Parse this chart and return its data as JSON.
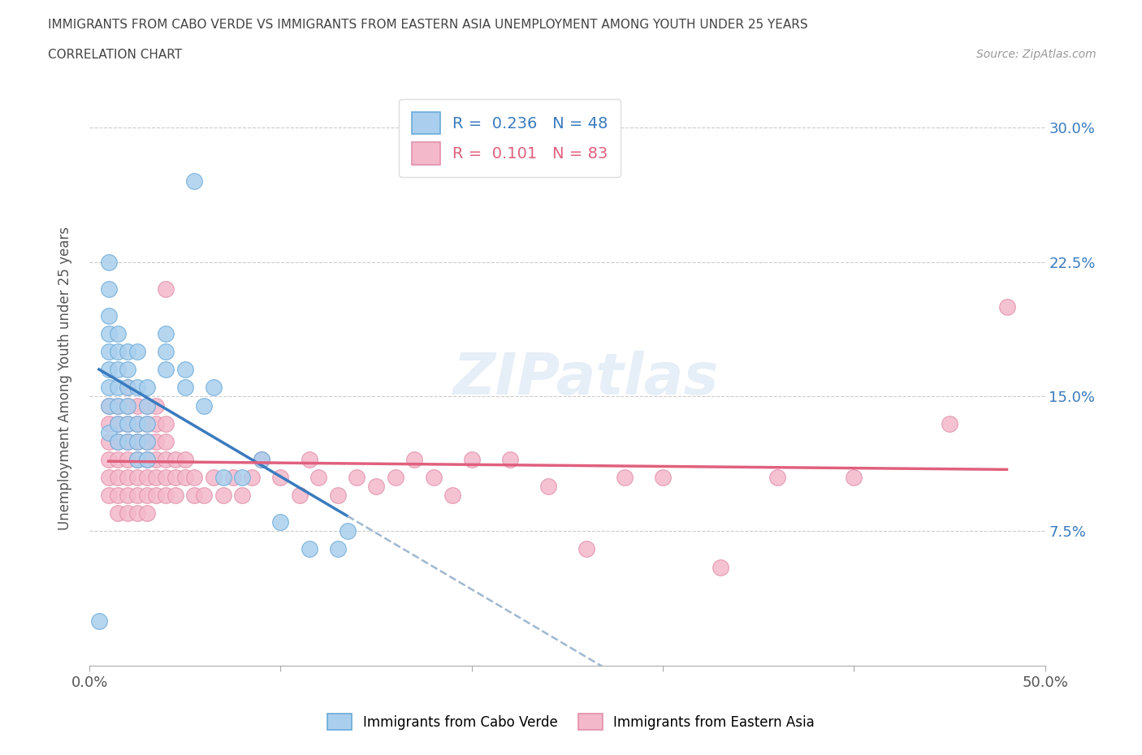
{
  "title_line1": "IMMIGRANTS FROM CABO VERDE VS IMMIGRANTS FROM EASTERN ASIA UNEMPLOYMENT AMONG YOUTH UNDER 25 YEARS",
  "title_line2": "CORRELATION CHART",
  "source": "Source: ZipAtlas.com",
  "ylabel": "Unemployment Among Youth under 25 years",
  "xlim": [
    0.0,
    0.5
  ],
  "ylim": [
    0.0,
    0.32
  ],
  "ytick_labels": [
    "7.5%",
    "15.0%",
    "22.5%",
    "30.0%"
  ],
  "ytick_values": [
    0.075,
    0.15,
    0.225,
    0.3
  ],
  "R_cabo": 0.236,
  "N_cabo": 48,
  "R_eastern": 0.101,
  "N_eastern": 83,
  "color_cabo": "#aacfee",
  "color_eastern": "#f4b8cb",
  "trendline_cabo_color": "#3a7bbf",
  "trendline_eastern_color": "#e0607e",
  "trendline_dashed_color": "#a0b8d0",
  "background_color": "#ffffff",
  "watermark": "ZIPatlas",
  "cabo_verde_points": [
    [
      0.005,
      0.025
    ],
    [
      0.01,
      0.13
    ],
    [
      0.01,
      0.145
    ],
    [
      0.01,
      0.155
    ],
    [
      0.01,
      0.165
    ],
    [
      0.01,
      0.175
    ],
    [
      0.01,
      0.185
    ],
    [
      0.01,
      0.195
    ],
    [
      0.01,
      0.21
    ],
    [
      0.01,
      0.225
    ],
    [
      0.015,
      0.125
    ],
    [
      0.015,
      0.135
    ],
    [
      0.015,
      0.145
    ],
    [
      0.015,
      0.155
    ],
    [
      0.015,
      0.165
    ],
    [
      0.015,
      0.175
    ],
    [
      0.015,
      0.185
    ],
    [
      0.02,
      0.125
    ],
    [
      0.02,
      0.135
    ],
    [
      0.02,
      0.145
    ],
    [
      0.02,
      0.155
    ],
    [
      0.02,
      0.165
    ],
    [
      0.02,
      0.175
    ],
    [
      0.025,
      0.115
    ],
    [
      0.025,
      0.125
    ],
    [
      0.025,
      0.135
    ],
    [
      0.025,
      0.155
    ],
    [
      0.025,
      0.175
    ],
    [
      0.03,
      0.115
    ],
    [
      0.03,
      0.125
    ],
    [
      0.03,
      0.135
    ],
    [
      0.03,
      0.145
    ],
    [
      0.03,
      0.155
    ],
    [
      0.04,
      0.165
    ],
    [
      0.04,
      0.175
    ],
    [
      0.04,
      0.185
    ],
    [
      0.05,
      0.155
    ],
    [
      0.05,
      0.165
    ],
    [
      0.055,
      0.27
    ],
    [
      0.06,
      0.145
    ],
    [
      0.065,
      0.155
    ],
    [
      0.07,
      0.105
    ],
    [
      0.08,
      0.105
    ],
    [
      0.09,
      0.115
    ],
    [
      0.1,
      0.08
    ],
    [
      0.115,
      0.065
    ],
    [
      0.13,
      0.065
    ],
    [
      0.135,
      0.075
    ]
  ],
  "eastern_asia_points": [
    [
      0.01,
      0.095
    ],
    [
      0.01,
      0.105
    ],
    [
      0.01,
      0.115
    ],
    [
      0.01,
      0.125
    ],
    [
      0.01,
      0.135
    ],
    [
      0.01,
      0.145
    ],
    [
      0.015,
      0.085
    ],
    [
      0.015,
      0.095
    ],
    [
      0.015,
      0.105
    ],
    [
      0.015,
      0.115
    ],
    [
      0.015,
      0.125
    ],
    [
      0.015,
      0.135
    ],
    [
      0.015,
      0.145
    ],
    [
      0.02,
      0.085
    ],
    [
      0.02,
      0.095
    ],
    [
      0.02,
      0.105
    ],
    [
      0.02,
      0.115
    ],
    [
      0.02,
      0.125
    ],
    [
      0.02,
      0.135
    ],
    [
      0.02,
      0.145
    ],
    [
      0.02,
      0.155
    ],
    [
      0.025,
      0.085
    ],
    [
      0.025,
      0.095
    ],
    [
      0.025,
      0.105
    ],
    [
      0.025,
      0.115
    ],
    [
      0.025,
      0.125
    ],
    [
      0.025,
      0.135
    ],
    [
      0.025,
      0.145
    ],
    [
      0.03,
      0.085
    ],
    [
      0.03,
      0.095
    ],
    [
      0.03,
      0.105
    ],
    [
      0.03,
      0.115
    ],
    [
      0.03,
      0.125
    ],
    [
      0.03,
      0.135
    ],
    [
      0.03,
      0.145
    ],
    [
      0.035,
      0.095
    ],
    [
      0.035,
      0.105
    ],
    [
      0.035,
      0.115
    ],
    [
      0.035,
      0.125
    ],
    [
      0.035,
      0.135
    ],
    [
      0.035,
      0.145
    ],
    [
      0.04,
      0.095
    ],
    [
      0.04,
      0.105
    ],
    [
      0.04,
      0.115
    ],
    [
      0.04,
      0.125
    ],
    [
      0.04,
      0.135
    ],
    [
      0.04,
      0.21
    ],
    [
      0.045,
      0.095
    ],
    [
      0.045,
      0.105
    ],
    [
      0.045,
      0.115
    ],
    [
      0.05,
      0.105
    ],
    [
      0.05,
      0.115
    ],
    [
      0.055,
      0.095
    ],
    [
      0.055,
      0.105
    ],
    [
      0.06,
      0.095
    ],
    [
      0.065,
      0.105
    ],
    [
      0.07,
      0.095
    ],
    [
      0.075,
      0.105
    ],
    [
      0.08,
      0.095
    ],
    [
      0.085,
      0.105
    ],
    [
      0.09,
      0.115
    ],
    [
      0.1,
      0.105
    ],
    [
      0.11,
      0.095
    ],
    [
      0.115,
      0.115
    ],
    [
      0.12,
      0.105
    ],
    [
      0.13,
      0.095
    ],
    [
      0.14,
      0.105
    ],
    [
      0.15,
      0.1
    ],
    [
      0.16,
      0.105
    ],
    [
      0.17,
      0.115
    ],
    [
      0.18,
      0.105
    ],
    [
      0.19,
      0.095
    ],
    [
      0.2,
      0.115
    ],
    [
      0.22,
      0.115
    ],
    [
      0.24,
      0.1
    ],
    [
      0.26,
      0.065
    ],
    [
      0.28,
      0.105
    ],
    [
      0.3,
      0.105
    ],
    [
      0.33,
      0.055
    ],
    [
      0.36,
      0.105
    ],
    [
      0.4,
      0.105
    ],
    [
      0.45,
      0.135
    ],
    [
      0.48,
      0.2
    ]
  ]
}
